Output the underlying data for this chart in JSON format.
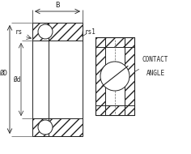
{
  "bg_color": "#ffffff",
  "line_color": "#222222",
  "text_color": "#222222",
  "fig_width": 2.36,
  "fig_height": 1.9,
  "dpi": 100,
  "labels": {
    "B": "B",
    "rs": "rs",
    "rs1": "rs1",
    "D": "ØD",
    "d": "Ød",
    "contact_angle1": "CONTACT",
    "contact_angle2": "ANGLE"
  }
}
